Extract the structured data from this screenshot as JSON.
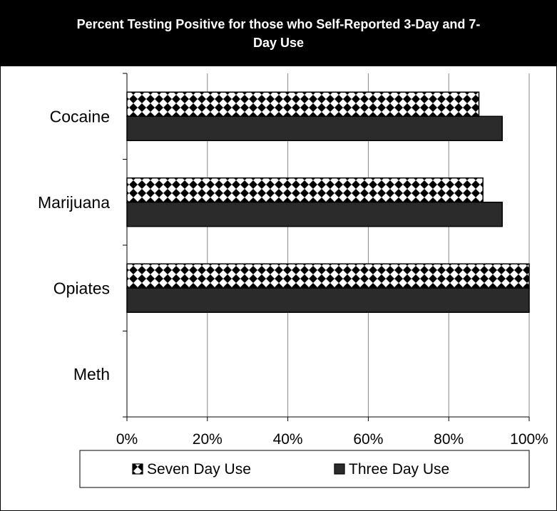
{
  "chart_data": {
    "type": "bar",
    "orientation": "horizontal",
    "title": "Percent Testing Positive for those who Self-Reported 3-Day and 7-Day Use",
    "title_lines": [
      "Percent Testing Positive for those who Self-Reported 3-Day and 7-",
      "Day Use"
    ],
    "categories": [
      "Cocaine",
      "Marijuana",
      "Opiates",
      "Meth"
    ],
    "series": [
      {
        "name": "Seven Day Use",
        "values": [
          87.5,
          88.5,
          100,
          0
        ],
        "color": "#000000",
        "pattern": "diamond-checker"
      },
      {
        "name": "Three Day Use",
        "values": [
          93.3,
          93.3,
          100,
          0
        ],
        "color": "#2b2b2b",
        "pattern": "solid"
      }
    ],
    "xlim": [
      0,
      100
    ],
    "xticks": [
      "0%",
      "20%",
      "40%",
      "60%",
      "80%",
      "100%"
    ],
    "grid": "vertical",
    "legend_position": "bottom"
  }
}
